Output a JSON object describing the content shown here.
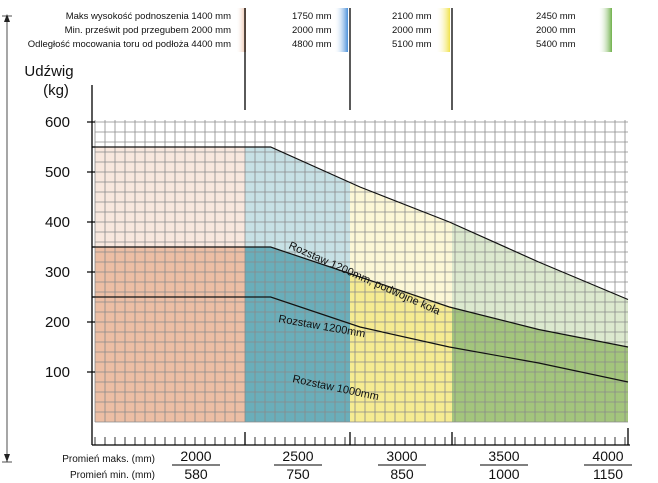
{
  "header": {
    "col1": [
      "Maks wysokość podnoszenia 1400 mm",
      "Min. prześwit pod przegubem 2000 mm",
      "Odległość mocowania toru od podłoża 4400 mm"
    ],
    "col2": [
      "1750 mm",
      "2000 mm",
      "4800 mm"
    ],
    "col3": [
      "2100 mm",
      "2000 mm",
      "5100 mm"
    ],
    "col4": [
      "2450 mm",
      "2000 mm",
      "5400 mm"
    ]
  },
  "footer": {
    "max_label": "Promień maks. (mm)",
    "min_label": "Promień min. (mm)"
  },
  "colors": {
    "zone1": "#eab99d",
    "zone2": "#5fa8b5",
    "zone3": "#f5e989",
    "zone4": "#9cc173",
    "zone_bar2": "#4a90d9",
    "zone_bar3": "#f0e24a",
    "zone_bar4": "#6fb04a"
  },
  "chart_data": {
    "type": "area",
    "ylabel": "Udźwig\n(kg)",
    "ylim": [
      0,
      620
    ],
    "yticks": [
      100,
      200,
      300,
      400,
      500,
      600
    ],
    "grid": true,
    "zones": [
      {
        "max_radius": 2000,
        "min_radius": 580
      },
      {
        "max_radius": 2500,
        "min_radius": 750
      },
      {
        "max_radius": 3000,
        "min_radius": 850
      },
      {
        "max_radius": 3500,
        "min_radius": 1000
      },
      {
        "max_radius": 4000,
        "min_radius": 1150
      }
    ],
    "series": [
      {
        "name": "Rozstaw 1000mm",
        "x": [
          1000,
          1500,
          2000,
          2500,
          3000,
          3500,
          4000
        ],
        "y": [
          250,
          250,
          250,
          190,
          150,
          118,
          80
        ]
      },
      {
        "name": "Rozstaw 1200mm",
        "x": [
          1000,
          1500,
          2000,
          2500,
          3000,
          3500,
          4000
        ],
        "y": [
          350,
          350,
          350,
          290,
          230,
          185,
          150
        ]
      },
      {
        "name": "Rozstaw 1200mm, podwójne koła",
        "x": [
          1000,
          1500,
          2000,
          2500,
          3000,
          3500,
          4000
        ],
        "y": [
          550,
          550,
          550,
          470,
          400,
          320,
          245
        ]
      }
    ]
  }
}
